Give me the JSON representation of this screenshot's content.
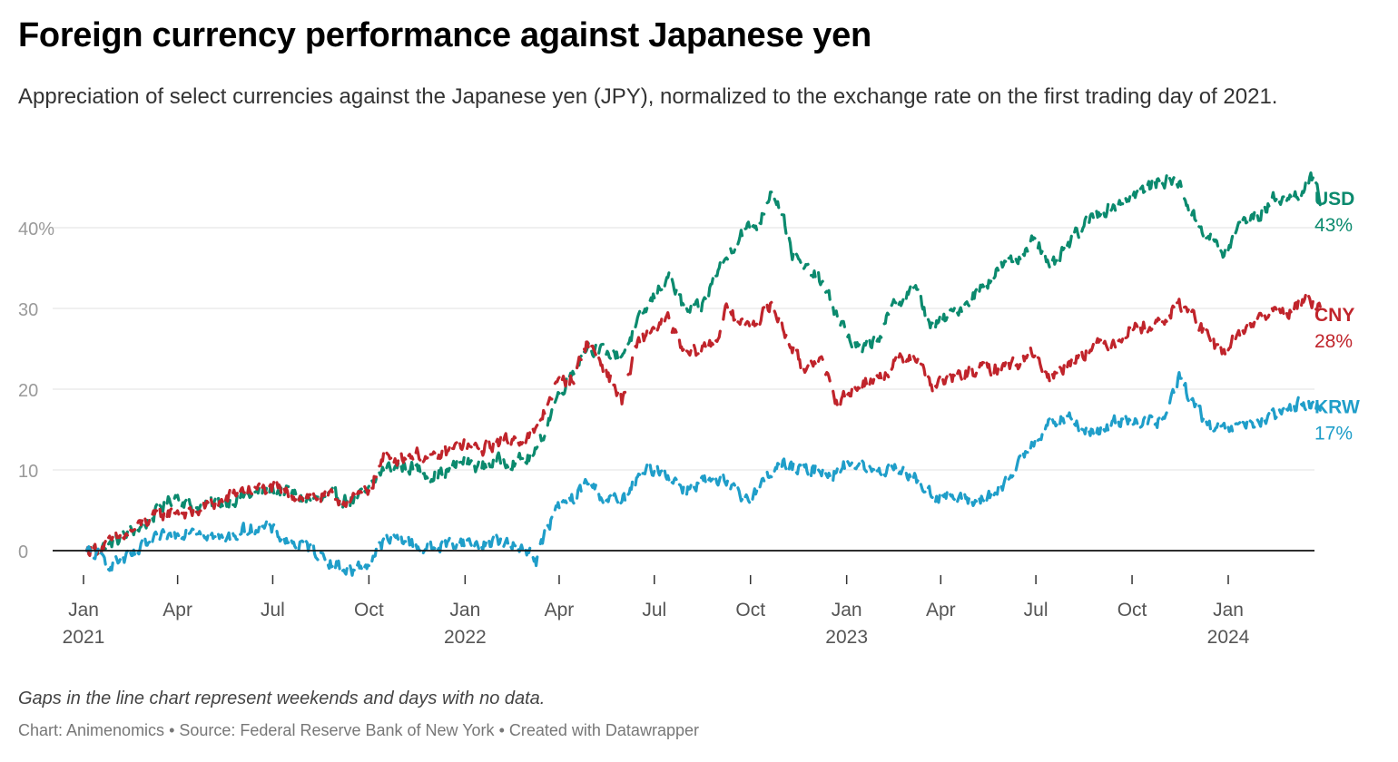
{
  "header": {
    "title": "Foreign currency performance against Japanese yen",
    "subtitle": "Appreciation of select currencies against the Japanese yen (JPY), normalized to the exchange rate on the first trading day of 2021."
  },
  "footer": {
    "note": "Gaps in the line chart represent weekends and days with no data.",
    "chart_by": "Chart: Animenomics",
    "source": "Source: Federal Reserve Bank of New York",
    "tool": "Created with Datawrapper",
    "separator": "•"
  },
  "chart_data": {
    "type": "line",
    "title": "Foreign currency performance against Japanese yen",
    "xlabel": "",
    "ylabel": "",
    "ylim": [
      -4,
      47
    ],
    "grid": true,
    "y_ticks": [
      {
        "value": 0,
        "label": "0"
      },
      {
        "value": 10,
        "label": "10"
      },
      {
        "value": 20,
        "label": "20"
      },
      {
        "value": 30,
        "label": "30"
      },
      {
        "value": 40,
        "label": "40%"
      }
    ],
    "x_ticks": [
      {
        "date": "2021-01-01",
        "label": "Jan",
        "year": "2021"
      },
      {
        "date": "2021-04-01",
        "label": "Apr",
        "year": ""
      },
      {
        "date": "2021-07-01",
        "label": "Jul",
        "year": ""
      },
      {
        "date": "2021-10-01",
        "label": "Oct",
        "year": ""
      },
      {
        "date": "2022-01-01",
        "label": "Jan",
        "year": "2022"
      },
      {
        "date": "2022-04-01",
        "label": "Apr",
        "year": ""
      },
      {
        "date": "2022-07-01",
        "label": "Jul",
        "year": ""
      },
      {
        "date": "2022-10-01",
        "label": "Oct",
        "year": ""
      },
      {
        "date": "2023-01-01",
        "label": "Jan",
        "year": "2023"
      },
      {
        "date": "2023-04-01",
        "label": "Apr",
        "year": ""
      },
      {
        "date": "2023-07-01",
        "label": "Jul",
        "year": ""
      },
      {
        "date": "2023-10-01",
        "label": "Oct",
        "year": ""
      },
      {
        "date": "2024-01-01",
        "label": "Jan",
        "year": "2024"
      }
    ],
    "series": [
      {
        "name": "USD",
        "end_label": "43%",
        "color": "#0b8a6e",
        "points": [
          [
            "2021-01-04",
            0
          ],
          [
            "2021-01-25",
            0.6
          ],
          [
            "2021-02-15",
            2.3
          ],
          [
            "2021-03-01",
            3.2
          ],
          [
            "2021-03-15",
            5.2
          ],
          [
            "2021-03-31",
            7.0
          ],
          [
            "2021-04-15",
            5.3
          ],
          [
            "2021-04-30",
            5.6
          ],
          [
            "2021-05-15",
            6.0
          ],
          [
            "2021-05-31",
            6.6
          ],
          [
            "2021-06-15",
            7.0
          ],
          [
            "2021-06-30",
            7.6
          ],
          [
            "2021-07-15",
            7.3
          ],
          [
            "2021-07-31",
            6.4
          ],
          [
            "2021-08-15",
            6.2
          ],
          [
            "2021-08-31",
            6.6
          ],
          [
            "2021-09-15",
            6.3
          ],
          [
            "2021-09-30",
            7.1
          ],
          [
            "2021-10-15",
            10.2
          ],
          [
            "2021-11-01",
            10.5
          ],
          [
            "2021-11-15",
            10.2
          ],
          [
            "2021-11-30",
            9.4
          ],
          [
            "2021-12-15",
            9.8
          ],
          [
            "2021-12-31",
            11.1
          ],
          [
            "2022-01-15",
            10.3
          ],
          [
            "2022-01-31",
            11.1
          ],
          [
            "2022-02-15",
            11.2
          ],
          [
            "2022-02-28",
            11.2
          ],
          [
            "2022-03-10",
            12.1
          ],
          [
            "2022-03-20",
            15.5
          ],
          [
            "2022-03-28",
            18.5
          ],
          [
            "2022-04-15",
            22.6
          ],
          [
            "2022-04-28",
            25.5
          ],
          [
            "2022-05-15",
            24.4
          ],
          [
            "2022-05-31",
            24.3
          ],
          [
            "2022-06-15",
            28.0
          ],
          [
            "2022-06-30",
            31.3
          ],
          [
            "2022-07-14",
            34.2
          ],
          [
            "2022-07-31",
            29.5
          ],
          [
            "2022-08-15",
            30.0
          ],
          [
            "2022-08-31",
            34.8
          ],
          [
            "2022-09-06",
            35.8
          ],
          [
            "2022-09-22",
            39.5
          ],
          [
            "2022-10-10",
            40.6
          ],
          [
            "2022-10-21",
            45.0
          ],
          [
            "2022-10-31",
            42.2
          ],
          [
            "2022-11-10",
            36.8
          ],
          [
            "2022-11-20",
            35.0
          ],
          [
            "2022-12-05",
            33.8
          ],
          [
            "2022-12-20",
            30.0
          ],
          [
            "2023-01-05",
            26.0
          ],
          [
            "2023-01-16",
            24.6
          ],
          [
            "2023-02-01",
            26.6
          ],
          [
            "2023-02-15",
            30.2
          ],
          [
            "2023-03-06",
            32.8
          ],
          [
            "2023-03-24",
            27.6
          ],
          [
            "2023-04-15",
            29.6
          ],
          [
            "2023-05-01",
            31.5
          ],
          [
            "2023-05-31",
            35.4
          ],
          [
            "2023-06-15",
            36.0
          ],
          [
            "2023-06-30",
            39.5
          ],
          [
            "2023-07-14",
            34.5
          ],
          [
            "2023-07-31",
            37.6
          ],
          [
            "2023-08-15",
            40.1
          ],
          [
            "2023-08-31",
            42.0
          ],
          [
            "2023-09-15",
            42.8
          ],
          [
            "2023-09-30",
            44.0
          ],
          [
            "2023-10-15",
            44.8
          ],
          [
            "2023-10-31",
            46.0
          ],
          [
            "2023-11-15",
            45.5
          ],
          [
            "2023-11-30",
            41.0
          ],
          [
            "2023-12-15",
            38.8
          ],
          [
            "2023-12-28",
            36.5
          ],
          [
            "2024-01-15",
            41.0
          ],
          [
            "2024-01-31",
            41.5
          ],
          [
            "2024-02-15",
            43.8
          ],
          [
            "2024-02-29",
            43.6
          ],
          [
            "2024-03-10",
            44.6
          ],
          [
            "2024-03-20",
            46.0
          ],
          [
            "2024-03-27",
            44.0
          ],
          [
            "2024-04-01",
            42.8
          ]
        ]
      },
      {
        "name": "CNY",
        "end_label": "28%",
        "color": "#c0242b",
        "points": [
          [
            "2021-01-04",
            0
          ],
          [
            "2021-01-25",
            0.8
          ],
          [
            "2021-02-15",
            2.2
          ],
          [
            "2021-03-01",
            3.6
          ],
          [
            "2021-03-15",
            4.3
          ],
          [
            "2021-03-31",
            5.0
          ],
          [
            "2021-04-15",
            4.5
          ],
          [
            "2021-04-30",
            5.6
          ],
          [
            "2021-05-15",
            6.1
          ],
          [
            "2021-05-31",
            7.5
          ],
          [
            "2021-06-15",
            7.6
          ],
          [
            "2021-06-30",
            7.6
          ],
          [
            "2021-07-15",
            7.1
          ],
          [
            "2021-07-31",
            6.8
          ],
          [
            "2021-08-15",
            6.6
          ],
          [
            "2021-08-31",
            6.4
          ],
          [
            "2021-09-15",
            6.2
          ],
          [
            "2021-09-30",
            7.4
          ],
          [
            "2021-10-15",
            11.4
          ],
          [
            "2021-11-01",
            11.6
          ],
          [
            "2021-11-15",
            12.1
          ],
          [
            "2021-11-30",
            11.1
          ],
          [
            "2021-12-15",
            12.2
          ],
          [
            "2021-12-31",
            13.2
          ],
          [
            "2022-01-15",
            12.3
          ],
          [
            "2022-01-31",
            13.4
          ],
          [
            "2022-02-15",
            13.8
          ],
          [
            "2022-02-28",
            14.0
          ],
          [
            "2022-03-10",
            14.6
          ],
          [
            "2022-03-20",
            18.0
          ],
          [
            "2022-03-28",
            20.5
          ],
          [
            "2022-04-15",
            21.5
          ],
          [
            "2022-04-28",
            26.0
          ],
          [
            "2022-05-15",
            22.5
          ],
          [
            "2022-05-31",
            18.5
          ],
          [
            "2022-06-15",
            25.5
          ],
          [
            "2022-06-30",
            27.6
          ],
          [
            "2022-07-14",
            28.5
          ],
          [
            "2022-07-31",
            24.0
          ],
          [
            "2022-08-15",
            25.0
          ],
          [
            "2022-08-31",
            26.3
          ],
          [
            "2022-09-06",
            30.0
          ],
          [
            "2022-09-22",
            28.0
          ],
          [
            "2022-10-10",
            28.8
          ],
          [
            "2022-10-21",
            30.4
          ],
          [
            "2022-10-31",
            27.8
          ],
          [
            "2022-11-10",
            25.2
          ],
          [
            "2022-11-20",
            22.3
          ],
          [
            "2022-12-05",
            24.4
          ],
          [
            "2022-12-20",
            18.7
          ],
          [
            "2023-01-05",
            19.5
          ],
          [
            "2023-01-16",
            21.0
          ],
          [
            "2023-02-01",
            21.3
          ],
          [
            "2023-02-15",
            23.0
          ],
          [
            "2023-03-06",
            24.5
          ],
          [
            "2023-03-24",
            20.4
          ],
          [
            "2023-04-15",
            21.4
          ],
          [
            "2023-05-01",
            22.2
          ],
          [
            "2023-05-31",
            22.8
          ],
          [
            "2023-06-15",
            23.3
          ],
          [
            "2023-06-30",
            24.8
          ],
          [
            "2023-07-14",
            21.2
          ],
          [
            "2023-07-31",
            23.2
          ],
          [
            "2023-08-15",
            24.6
          ],
          [
            "2023-08-31",
            25.5
          ],
          [
            "2023-09-15",
            26.0
          ],
          [
            "2023-09-30",
            27.6
          ],
          [
            "2023-10-15",
            27.8
          ],
          [
            "2023-10-31",
            28.4
          ],
          [
            "2023-11-15",
            30.6
          ],
          [
            "2023-11-30",
            29.0
          ],
          [
            "2023-12-15",
            25.6
          ],
          [
            "2023-12-28",
            24.6
          ],
          [
            "2024-01-15",
            27.4
          ],
          [
            "2024-01-31",
            28.8
          ],
          [
            "2024-02-15",
            29.6
          ],
          [
            "2024-02-29",
            29.8
          ],
          [
            "2024-03-10",
            30.6
          ],
          [
            "2024-03-20",
            31.0
          ],
          [
            "2024-03-27",
            30.2
          ],
          [
            "2024-04-01",
            28.4
          ]
        ]
      },
      {
        "name": "KRW",
        "end_label": "17%",
        "color": "#1f9ec9",
        "points": [
          [
            "2021-01-04",
            0
          ],
          [
            "2021-01-25",
            -1.5
          ],
          [
            "2021-02-15",
            -1.0
          ],
          [
            "2021-03-01",
            0.5
          ],
          [
            "2021-03-15",
            1.5
          ],
          [
            "2021-03-31",
            2.0
          ],
          [
            "2021-04-15",
            3.0
          ],
          [
            "2021-04-30",
            2.2
          ],
          [
            "2021-05-15",
            1.2
          ],
          [
            "2021-05-31",
            2.4
          ],
          [
            "2021-06-15",
            3.0
          ],
          [
            "2021-06-30",
            2.5
          ],
          [
            "2021-07-15",
            1.2
          ],
          [
            "2021-07-31",
            0.5
          ],
          [
            "2021-08-15",
            -0.3
          ],
          [
            "2021-08-31",
            -1.8
          ],
          [
            "2021-09-15",
            -2.5
          ],
          [
            "2021-09-30",
            -1.5
          ],
          [
            "2021-10-15",
            1.0
          ],
          [
            "2021-11-01",
            1.6
          ],
          [
            "2021-11-15",
            0.6
          ],
          [
            "2021-11-30",
            0.2
          ],
          [
            "2021-12-15",
            0.8
          ],
          [
            "2021-12-31",
            1.2
          ],
          [
            "2022-01-15",
            0.6
          ],
          [
            "2022-01-31",
            1.4
          ],
          [
            "2022-02-15",
            0.4
          ],
          [
            "2022-02-28",
            0.6
          ],
          [
            "2022-03-10",
            -1.2
          ],
          [
            "2022-03-20",
            2.5
          ],
          [
            "2022-03-28",
            5.0
          ],
          [
            "2022-04-15",
            6.5
          ],
          [
            "2022-04-28",
            8.5
          ],
          [
            "2022-05-15",
            6.5
          ],
          [
            "2022-05-31",
            6.0
          ],
          [
            "2022-06-15",
            8.8
          ],
          [
            "2022-06-30",
            10.2
          ],
          [
            "2022-07-14",
            9.5
          ],
          [
            "2022-07-31",
            7.5
          ],
          [
            "2022-08-15",
            8.8
          ],
          [
            "2022-08-31",
            8.0
          ],
          [
            "2022-09-06",
            8.5
          ],
          [
            "2022-09-22",
            6.5
          ],
          [
            "2022-10-10",
            7.8
          ],
          [
            "2022-10-21",
            10.0
          ],
          [
            "2022-10-31",
            10.8
          ],
          [
            "2022-11-10",
            10.2
          ],
          [
            "2022-11-20",
            9.8
          ],
          [
            "2022-12-05",
            10.2
          ],
          [
            "2022-12-20",
            9.6
          ],
          [
            "2023-01-05",
            11.0
          ],
          [
            "2023-01-16",
            10.4
          ],
          [
            "2023-02-01",
            9.6
          ],
          [
            "2023-02-15",
            10.8
          ],
          [
            "2023-03-06",
            9.0
          ],
          [
            "2023-03-24",
            7.0
          ],
          [
            "2023-04-15",
            6.5
          ],
          [
            "2023-05-01",
            6.0
          ],
          [
            "2023-05-31",
            7.5
          ],
          [
            "2023-06-15",
            11.0
          ],
          [
            "2023-06-30",
            14.0
          ],
          [
            "2023-07-14",
            15.5
          ],
          [
            "2023-07-31",
            16.5
          ],
          [
            "2023-08-15",
            15.0
          ],
          [
            "2023-08-31",
            14.5
          ],
          [
            "2023-09-15",
            16.0
          ],
          [
            "2023-09-30",
            16.5
          ],
          [
            "2023-10-15",
            15.8
          ],
          [
            "2023-10-31",
            16.0
          ],
          [
            "2023-11-15",
            21.5
          ],
          [
            "2023-11-30",
            18.0
          ],
          [
            "2023-12-15",
            15.0
          ],
          [
            "2023-12-28",
            14.8
          ],
          [
            "2024-01-15",
            15.5
          ],
          [
            "2024-01-31",
            16.0
          ],
          [
            "2024-02-15",
            16.5
          ],
          [
            "2024-02-29",
            17.5
          ],
          [
            "2024-03-10",
            18.5
          ],
          [
            "2024-03-20",
            18.2
          ],
          [
            "2024-03-27",
            17.6
          ],
          [
            "2024-04-01",
            17.0
          ]
        ]
      }
    ]
  }
}
